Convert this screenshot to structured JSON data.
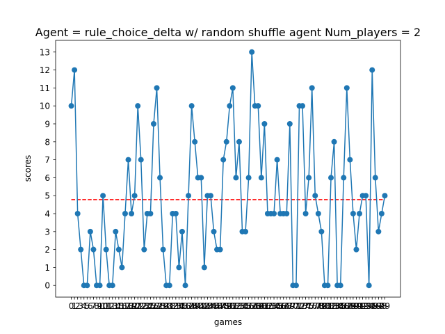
{
  "chart_data": {
    "type": "line",
    "title": "Agent = rule_choice_delta w/ random shuffle agent Num_players = 2",
    "xlabel": "games",
    "ylabel": "scores",
    "x": [
      0,
      1,
      2,
      3,
      4,
      5,
      6,
      7,
      8,
      9,
      10,
      11,
      12,
      13,
      14,
      15,
      16,
      17,
      18,
      19,
      20,
      21,
      22,
      23,
      24,
      25,
      26,
      27,
      28,
      29,
      30,
      31,
      32,
      33,
      34,
      35,
      36,
      37,
      38,
      39,
      40,
      41,
      42,
      43,
      44,
      45,
      46,
      47,
      48,
      49,
      50,
      51,
      52,
      53,
      54,
      55,
      56,
      57,
      58,
      59,
      60,
      61,
      62,
      63,
      64,
      65,
      66,
      67,
      68,
      69,
      70,
      71,
      72,
      73,
      74,
      75,
      76,
      77,
      78,
      79,
      80,
      81,
      82,
      83,
      84,
      85,
      86,
      87,
      88,
      89,
      90,
      91,
      92,
      93,
      94,
      95,
      96,
      97,
      98,
      99
    ],
    "x_tick_labels": [
      "0",
      "1",
      "2",
      "3",
      "4",
      "5",
      "6",
      "7",
      "8",
      "9",
      "10",
      "11",
      "12",
      "13",
      "14",
      "15",
      "16",
      "17",
      "18",
      "19",
      "20",
      "21",
      "22",
      "23",
      "24",
      "25",
      "26",
      "27",
      "28",
      "29",
      "30",
      "31",
      "32",
      "33",
      "34",
      "35",
      "36",
      "37",
      "38",
      "39",
      "40",
      "41",
      "42",
      "43",
      "44",
      "45",
      "46",
      "47",
      "48",
      "49",
      "50",
      "51",
      "52",
      "53",
      "54",
      "55",
      "56",
      "57",
      "58",
      "59",
      "60",
      "61",
      "62",
      "63",
      "64",
      "65",
      "66",
      "67",
      "68",
      "69",
      "70",
      "71",
      "72",
      "73",
      "74",
      "75",
      "76",
      "77",
      "78",
      "79",
      "80",
      "81",
      "82",
      "83",
      "84",
      "85",
      "86",
      "87",
      "88",
      "89",
      "90",
      "91",
      "92",
      "93",
      "94",
      "95",
      "96",
      "97",
      "98",
      "99"
    ],
    "series": [
      {
        "values": [
          10,
          12,
          4,
          2,
          0,
          0,
          3,
          2,
          0,
          0,
          5,
          2,
          0,
          0,
          3,
          2,
          1,
          4,
          7,
          4,
          5,
          10,
          7,
          2,
          4,
          4,
          9,
          11,
          6,
          2,
          0,
          0,
          4,
          4,
          1,
          3,
          0,
          5,
          10,
          8,
          6,
          6,
          1,
          5,
          5,
          3,
          2,
          2,
          7,
          8,
          10,
          11,
          6,
          8,
          3,
          3,
          6,
          13,
          10,
          10,
          6,
          9,
          4,
          4,
          4,
          7,
          4,
          4,
          4,
          9,
          0,
          0,
          10,
          10,
          4,
          6,
          11,
          5,
          4,
          3,
          0,
          0,
          6,
          8,
          0,
          0,
          6,
          11,
          7,
          4,
          2,
          4,
          5,
          5,
          0,
          12,
          6,
          3,
          4,
          5
        ],
        "color": "#1f77b4"
      }
    ],
    "reference_line": {
      "y": 4.78,
      "color": "#ff0000",
      "style": "dashed"
    },
    "ylim": [
      -0.65,
      13.65
    ],
    "xlim": [
      -4.95,
      103.95
    ],
    "y_ticks": [
      0,
      1,
      2,
      3,
      4,
      5,
      6,
      7,
      8,
      9,
      10,
      11,
      12,
      13
    ],
    "grid": false
  }
}
